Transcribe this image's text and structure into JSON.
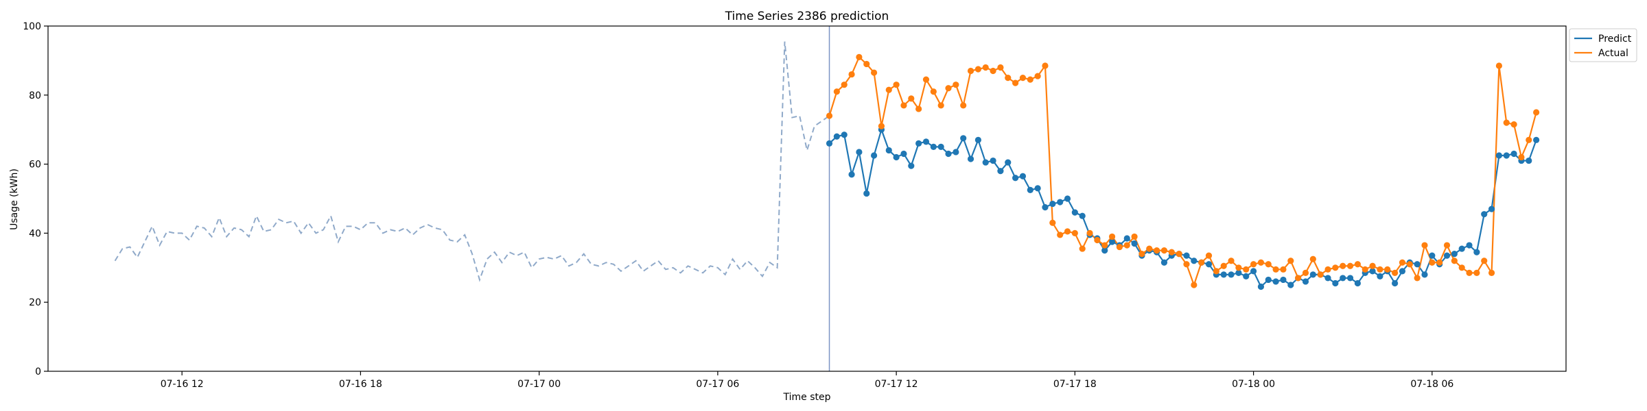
{
  "chart_data": {
    "type": "line",
    "title": "Time Series 2386 prediction",
    "xlabel": "Time step",
    "ylabel": "Usage (kWh)",
    "ylim": [
      0,
      100
    ],
    "yticks": [
      0,
      20,
      40,
      60,
      80,
      100
    ],
    "x_unit": "hours since 07-16 00:00",
    "xlim": [
      7.5,
      58.5
    ],
    "xticks": [
      {
        "x": 12,
        "label": "07-16 12"
      },
      {
        "x": 18,
        "label": "07-16 18"
      },
      {
        "x": 24,
        "label": "07-17 00"
      },
      {
        "x": 30,
        "label": "07-17 06"
      },
      {
        "x": 36,
        "label": "07-17 12"
      },
      {
        "x": 42,
        "label": "07-17 18"
      },
      {
        "x": 48,
        "label": "07-18 00"
      },
      {
        "x": 54,
        "label": "07-18 06"
      }
    ],
    "forecast_start": 33.75,
    "legend_position": "upper-right-outside",
    "grid": false,
    "history": {
      "start": 9.75,
      "step": 0.25,
      "color": "#8fa9c9",
      "style": "dashed",
      "values": [
        32.0,
        35.5,
        36.0,
        33.0,
        37.5,
        42.0,
        36.5,
        40.5,
        40.0,
        40.0,
        38.0,
        42.0,
        41.5,
        39.0,
        44.5,
        39.0,
        41.5,
        41.0,
        39.0,
        45.0,
        40.5,
        41.0,
        44.0,
        43.0,
        43.5,
        40.0,
        43.0,
        40.0,
        41.0,
        45.0,
        37.5,
        42.0,
        42.0,
        41.0,
        43.0,
        43.0,
        40.0,
        41.0,
        40.5,
        41.5,
        39.5,
        41.5,
        42.5,
        41.5,
        41.0,
        38.0,
        37.5,
        39.5,
        34.0,
        26.5,
        32.5,
        34.5,
        31.5,
        34.5,
        33.5,
        34.5,
        30.0,
        32.5,
        33.0,
        32.5,
        33.5,
        30.5,
        31.5,
        34.0,
        31.0,
        30.5,
        31.5,
        31.0,
        29.0,
        30.5,
        32.0,
        29.0,
        30.5,
        32.0,
        29.5,
        30.0,
        28.5,
        30.5,
        29.5,
        28.5,
        30.5,
        30.0,
        28.0,
        32.5,
        29.5,
        32.0,
        30.0,
        27.5,
        31.5,
        30.0,
        95.5,
        73.5,
        74.0,
        64.0,
        71.0,
        72.5,
        74.0
      ]
    },
    "series": [
      {
        "name": "Predict",
        "color": "#1f77b4",
        "start": 33.75,
        "step": 0.25,
        "values": [
          66.0,
          68.0,
          68.5,
          57.0,
          63.5,
          51.5,
          62.5,
          70.0,
          64.0,
          62.0,
          63.0,
          59.5,
          66.0,
          66.5,
          65.0,
          65.0,
          63.0,
          63.5,
          67.5,
          61.5,
          67.0,
          60.5,
          61.0,
          58.0,
          60.5,
          56.0,
          56.5,
          52.5,
          53.0,
          47.5,
          48.5,
          49.0,
          50.0,
          46.0,
          45.0,
          39.5,
          38.5,
          35.0,
          37.5,
          36.5,
          38.5,
          37.0,
          33.5,
          35.0,
          34.5,
          31.5,
          33.5,
          34.0,
          33.5,
          32.0,
          31.5,
          31.0,
          28.0,
          28.0,
          28.0,
          28.5,
          27.5,
          29.0,
          24.5,
          26.5,
          26.0,
          26.5,
          25.0,
          27.0,
          26.0,
          28.0,
          28.0,
          27.0,
          25.5,
          27.0,
          27.0,
          25.5,
          28.5,
          29.0,
          27.5,
          29.0,
          25.5,
          29.0,
          31.5,
          31.0,
          28.0,
          33.5,
          31.0,
          33.5,
          34.0,
          35.5,
          36.5,
          34.5,
          45.5,
          47.0,
          62.5,
          62.5,
          63.0,
          61.0,
          61.0,
          67.0
        ]
      },
      {
        "name": "Actual",
        "color": "#ff7f0e",
        "start": 33.75,
        "step": 0.25,
        "values": [
          74.0,
          81.0,
          83.0,
          86.0,
          91.0,
          89.0,
          86.5,
          71.0,
          81.5,
          83.0,
          77.0,
          79.0,
          76.0,
          84.5,
          81.0,
          77.0,
          82.0,
          83.0,
          77.0,
          87.0,
          87.5,
          88.0,
          87.0,
          88.0,
          85.0,
          83.5,
          85.0,
          84.5,
          85.5,
          88.5,
          43.0,
          39.5,
          40.5,
          40.0,
          35.5,
          40.0,
          38.0,
          36.5,
          39.0,
          36.0,
          36.5,
          39.0,
          34.0,
          35.5,
          35.0,
          35.0,
          34.5,
          34.0,
          31.0,
          25.0,
          31.5,
          33.5,
          29.0,
          30.5,
          32.0,
          30.0,
          29.5,
          31.0,
          31.5,
          31.0,
          29.5,
          29.5,
          32.0,
          27.0,
          28.5,
          32.5,
          28.0,
          29.5,
          30.0,
          30.5,
          30.5,
          31.0,
          29.5,
          30.5,
          29.5,
          29.5,
          28.5,
          31.5,
          31.0,
          27.0,
          36.5,
          31.5,
          31.5,
          36.5,
          32.0,
          30.0,
          28.5,
          28.5,
          32.0,
          28.5,
          88.5,
          72.0,
          71.5,
          62.0,
          67.0,
          75.0
        ]
      }
    ]
  }
}
